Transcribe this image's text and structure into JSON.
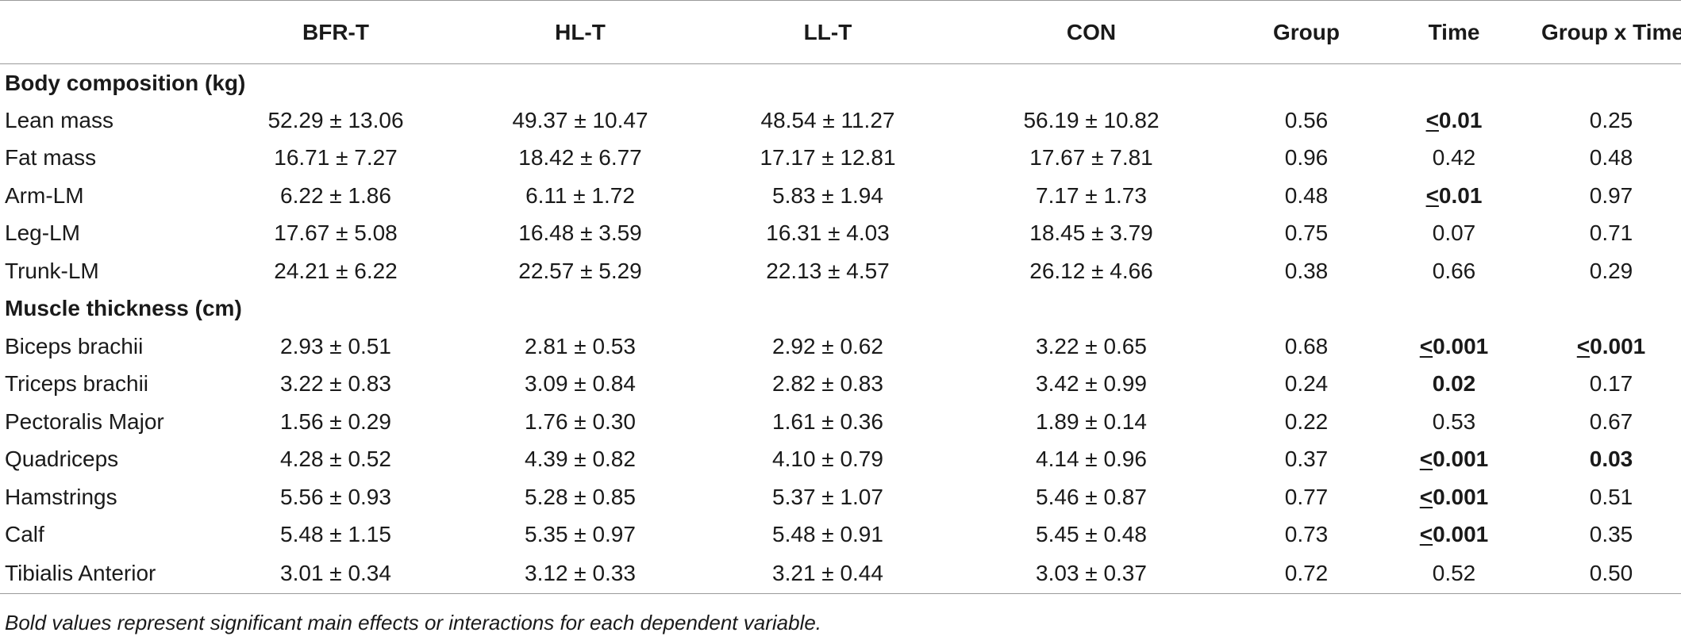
{
  "columns": [
    "",
    "BFR-T",
    "HL-T",
    "LL-T",
    "CON",
    "Group",
    "Time",
    "Group x Time"
  ],
  "sections": [
    {
      "title": "Body composition (kg)",
      "rows": [
        {
          "label": "Lean mass",
          "cells": [
            {
              "t": "52.29 ± 13.06"
            },
            {
              "t": "49.37 ± 10.47"
            },
            {
              "t": "48.54 ± 11.27"
            },
            {
              "t": "56.19 ± 10.82"
            },
            {
              "t": "0.56"
            },
            {
              "t": "≤0.01",
              "bold": true
            },
            {
              "t": "0.25"
            }
          ]
        },
        {
          "label": "Fat mass",
          "cells": [
            {
              "t": "16.71 ± 7.27"
            },
            {
              "t": "18.42 ± 6.77"
            },
            {
              "t": "17.17 ± 12.81"
            },
            {
              "t": "17.67 ± 7.81"
            },
            {
              "t": "0.96"
            },
            {
              "t": "0.42"
            },
            {
              "t": "0.48"
            }
          ]
        },
        {
          "label": "Arm-LM",
          "cells": [
            {
              "t": "6.22 ± 1.86"
            },
            {
              "t": "6.11 ± 1.72"
            },
            {
              "t": "5.83 ± 1.94"
            },
            {
              "t": "7.17 ± 1.73"
            },
            {
              "t": "0.48"
            },
            {
              "t": "≤0.01",
              "bold": true
            },
            {
              "t": "0.97"
            }
          ]
        },
        {
          "label": "Leg-LM",
          "cells": [
            {
              "t": "17.67 ± 5.08"
            },
            {
              "t": "16.48 ± 3.59"
            },
            {
              "t": "16.31 ± 4.03"
            },
            {
              "t": "18.45 ± 3.79"
            },
            {
              "t": "0.75"
            },
            {
              "t": "0.07"
            },
            {
              "t": "0.71"
            }
          ]
        },
        {
          "label": "Trunk-LM",
          "cells": [
            {
              "t": "24.21 ± 6.22"
            },
            {
              "t": "22.57 ± 5.29"
            },
            {
              "t": "22.13 ± 4.57"
            },
            {
              "t": "26.12 ± 4.66"
            },
            {
              "t": "0.38"
            },
            {
              "t": "0.66"
            },
            {
              "t": "0.29"
            }
          ]
        }
      ]
    },
    {
      "title": "Muscle thickness (cm)",
      "rows": [
        {
          "label": "Biceps brachii",
          "cells": [
            {
              "t": "2.93 ± 0.51"
            },
            {
              "t": "2.81 ± 0.53"
            },
            {
              "t": "2.92 ± 0.62"
            },
            {
              "t": "3.22 ± 0.65"
            },
            {
              "t": "0.68"
            },
            {
              "t": "≤0.001",
              "bold": true
            },
            {
              "t": "≤0.001",
              "bold": true
            }
          ]
        },
        {
          "label": "Triceps brachii",
          "cells": [
            {
              "t": "3.22 ± 0.83"
            },
            {
              "t": "3.09 ± 0.84"
            },
            {
              "t": "2.82 ± 0.83"
            },
            {
              "t": "3.42 ± 0.99"
            },
            {
              "t": "0.24"
            },
            {
              "t": "0.02",
              "bold": true
            },
            {
              "t": "0.17"
            }
          ]
        },
        {
          "label": "Pectoralis Major",
          "cells": [
            {
              "t": "1.56 ± 0.29"
            },
            {
              "t": "1.76 ± 0.30"
            },
            {
              "t": "1.61 ± 0.36"
            },
            {
              "t": "1.89 ± 0.14"
            },
            {
              "t": "0.22"
            },
            {
              "t": "0.53"
            },
            {
              "t": "0.67"
            }
          ]
        },
        {
          "label": "Quadriceps",
          "cells": [
            {
              "t": "4.28 ± 0.52"
            },
            {
              "t": "4.39 ± 0.82"
            },
            {
              "t": "4.10 ± 0.79"
            },
            {
              "t": "4.14 ± 0.96"
            },
            {
              "t": "0.37"
            },
            {
              "t": "≤0.001",
              "bold": true
            },
            {
              "t": "0.03",
              "bold": true
            }
          ]
        },
        {
          "label": "Hamstrings",
          "cells": [
            {
              "t": "5.56 ± 0.93"
            },
            {
              "t": "5.28 ± 0.85"
            },
            {
              "t": "5.37 ± 1.07"
            },
            {
              "t": "5.46 ± 0.87"
            },
            {
              "t": "0.77"
            },
            {
              "t": "≤0.001",
              "bold": true
            },
            {
              "t": "0.51"
            }
          ]
        },
        {
          "label": "Calf",
          "cells": [
            {
              "t": "5.48 ± 1.15"
            },
            {
              "t": "5.35 ± 0.97"
            },
            {
              "t": "5.48 ± 0.91"
            },
            {
              "t": "5.45 ± 0.48"
            },
            {
              "t": "0.73"
            },
            {
              "t": "≤0.001",
              "bold": true
            },
            {
              "t": "0.35"
            }
          ]
        },
        {
          "label": "Tibialis Anterior",
          "cells": [
            {
              "t": "3.01 ± 0.34"
            },
            {
              "t": "3.12 ± 0.33"
            },
            {
              "t": "3.21 ± 0.44"
            },
            {
              "t": "3.03 ± 0.37"
            },
            {
              "t": "0.72"
            },
            {
              "t": "0.52"
            },
            {
              "t": "0.50"
            }
          ]
        }
      ]
    }
  ],
  "footnote": "Bold values represent significant main effects or interactions for each dependent variable."
}
